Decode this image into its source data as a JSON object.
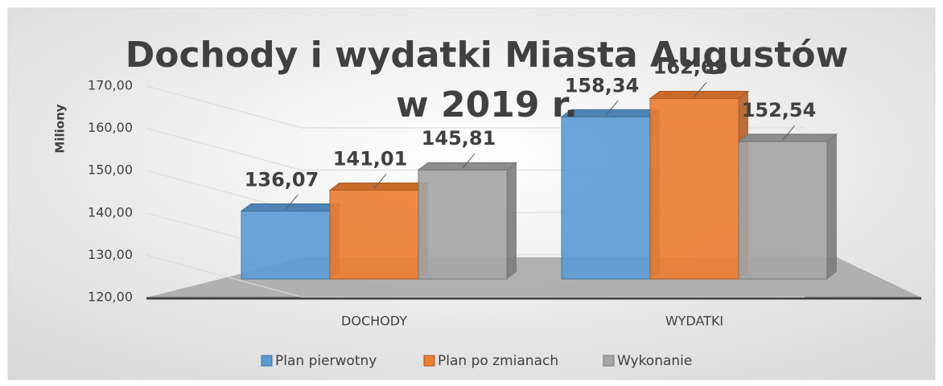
{
  "chart_data": {
    "type": "bar3d",
    "title": "Dochody i wydatki  Miasta Augustów w 2019 r.",
    "y_label": "Miliony",
    "categories": [
      "DOCHODY",
      "WYDATKI"
    ],
    "series": [
      {
        "name": "Plan pierwotny",
        "color": "#5b9bd5",
        "values": [
          136.07,
          158.34
        ],
        "value_labels": [
          "136,07",
          "158,34"
        ]
      },
      {
        "name": "Plan po zmianach",
        "color": "#ed7d31",
        "values": [
          141.01,
          162.69
        ],
        "value_labels": [
          "141,01",
          "162,69"
        ]
      },
      {
        "name": "Wykonanie",
        "color": "#a5a5a5",
        "values": [
          145.81,
          152.54
        ],
        "value_labels": [
          "145,81",
          "152,54"
        ]
      }
    ],
    "ylim": [
      120,
      170
    ],
    "yticks": [
      {
        "value": 120,
        "label": "120,00"
      },
      {
        "value": 130,
        "label": "130,00"
      },
      {
        "value": 140,
        "label": "140,00"
      },
      {
        "value": 150,
        "label": "150,00"
      },
      {
        "value": 160,
        "label": "160,00"
      },
      {
        "value": 170,
        "label": "170,00"
      }
    ],
    "grid": true,
    "legend": "bottom"
  }
}
